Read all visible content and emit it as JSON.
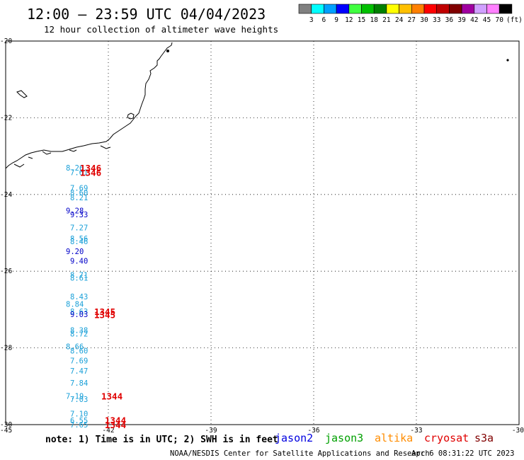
{
  "header": {
    "title": "12:00 — 23:59 UTC 04/04/2023",
    "subtitle": "12 hour collection of altimeter wave heights"
  },
  "legend": {
    "unit": "(ft)",
    "colors": [
      "#808080",
      "#00ffff",
      "#00a0ff",
      "#0000ff",
      "#40ff40",
      "#00c000",
      "#008000",
      "#ffff00",
      "#ffc000",
      "#ff8000",
      "#ff0000",
      "#c00000",
      "#800000",
      "#a000a0",
      "#d0a0ff",
      "#ff80ff",
      "#000000"
    ],
    "labels": [
      "3",
      "6",
      "9",
      "12",
      "15",
      "18",
      "21",
      "24",
      "27",
      "30",
      "33",
      "36",
      "39",
      "42",
      "45",
      "70"
    ]
  },
  "axes": {
    "lon_ticks": [
      "-45",
      "-42",
      "-39",
      "-36",
      "-33",
      "-30"
    ],
    "lat_ticks": [
      "-20",
      "-22",
      "-24",
      "-26",
      "-28",
      "-30"
    ]
  },
  "readings": [
    {
      "value": "8.26",
      "lat": -23.3,
      "color": "#1aa0d8"
    },
    {
      "value": "7.61",
      "lat": -23.42,
      "color": "#1aa0d8"
    },
    {
      "value": "7.69",
      "lat": -23.83,
      "color": "#1aa0d8"
    },
    {
      "value": "8.60",
      "lat": -23.95,
      "color": "#1aa0d8"
    },
    {
      "value": "8.21",
      "lat": -24.08,
      "color": "#1aa0d8"
    },
    {
      "value": "9.28",
      "lat": -24.42,
      "color": "#0000c8"
    },
    {
      "value": "9.33",
      "lat": -24.52,
      "color": "#0000c8"
    },
    {
      "value": "7.27",
      "lat": -24.86,
      "color": "#1aa0d8"
    },
    {
      "value": "8.56",
      "lat": -25.15,
      "color": "#1aa0d8"
    },
    {
      "value": "8.46",
      "lat": -25.22,
      "color": "#1aa0d8"
    },
    {
      "value": "9.20",
      "lat": -25.48,
      "color": "#0000c8"
    },
    {
      "value": "9.40",
      "lat": -25.73,
      "color": "#0000c8"
    },
    {
      "value": "8.71",
      "lat": -26.1,
      "color": "#1aa0d8"
    },
    {
      "value": "8.61",
      "lat": -26.17,
      "color": "#1aa0d8"
    },
    {
      "value": "8.43",
      "lat": -26.66,
      "color": "#1aa0d8"
    },
    {
      "value": "8.84",
      "lat": -26.85,
      "color": "#1aa0d8"
    },
    {
      "value": "8.63",
      "lat": -27.05,
      "color": "#1aa0d8"
    },
    {
      "value": "9.03",
      "lat": -27.12,
      "color": "#0000c8"
    },
    {
      "value": "8.38",
      "lat": -27.54,
      "color": "#1aa0d8"
    },
    {
      "value": "8.72",
      "lat": -27.63,
      "color": "#1aa0d8"
    },
    {
      "value": "8.66",
      "lat": -27.96,
      "color": "#1aa0d8"
    },
    {
      "value": "8.60",
      "lat": -28.07,
      "color": "#1aa0d8"
    },
    {
      "value": "7.69",
      "lat": -28.33,
      "color": "#1aa0d8"
    },
    {
      "value": "7.47",
      "lat": -28.6,
      "color": "#1aa0d8"
    },
    {
      "value": "7.84",
      "lat": -28.91,
      "color": "#1aa0d8"
    },
    {
      "value": "7.19",
      "lat": -29.25,
      "color": "#1aa0d8"
    },
    {
      "value": "7.03",
      "lat": -29.34,
      "color": "#1aa0d8"
    },
    {
      "value": "7.10",
      "lat": -29.71,
      "color": "#1aa0d8"
    },
    {
      "value": "6.55",
      "lat": -29.89,
      "color": "#1aa0d8"
    },
    {
      "value": "7.65",
      "lat": -30.0,
      "color": "#1aa0d8"
    }
  ],
  "times": [
    {
      "value": "1346",
      "lat": -23.3
    },
    {
      "value": "1346",
      "lat": -23.42
    },
    {
      "value": "1345",
      "lat": -27.05
    },
    {
      "value": "1345",
      "lat": -27.13
    },
    {
      "value": "1344",
      "lat": -29.25
    },
    {
      "value": "1344",
      "lat": -29.88
    },
    {
      "value": "1344",
      "lat": -30.0
    }
  ],
  "footer": {
    "note": "note: 1) Time is in UTC; 2) SWH is in feet",
    "credit": "NOAA/NESDIS Center for Satellite Applications and Research",
    "timestamp": "Apr  6 08:31:22 UTC 2023",
    "missions": [
      {
        "name": "jason2",
        "color": "#0000e0"
      },
      {
        "name": "jason3",
        "color": "#00a000"
      },
      {
        "name": "altika",
        "color": "#ff8c00"
      },
      {
        "name": "cryosat",
        "color": "#e00000"
      },
      {
        "name": "s3a",
        "color": "#800000"
      }
    ]
  }
}
